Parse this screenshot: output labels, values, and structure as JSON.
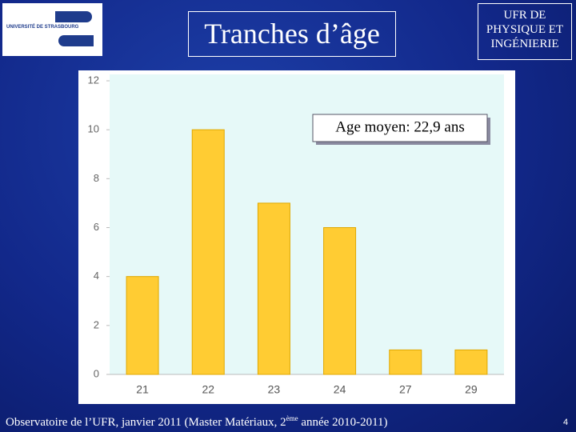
{
  "logo": "UNIVERSITÉ DE STRASBOURG",
  "institution": [
    "UFR DE",
    "PHYSIQUE ET",
    "INGÉNIERIE"
  ],
  "chart_data": {
    "type": "bar",
    "title": "Tranches d’âge",
    "categories": [
      "21",
      "22",
      "23",
      "24",
      "27",
      "29"
    ],
    "values": [
      4,
      10,
      7,
      6,
      1,
      1
    ],
    "color": "#ffcc33",
    "ylim": [
      0,
      12
    ],
    "yticks": [
      0,
      2,
      4,
      6,
      8,
      10,
      12
    ],
    "annotation": "Age moyen: 22,9 ans"
  },
  "footer": {
    "text": "Observatoire de l’UFR, janvier 2011 (Master Matériaux, 2",
    "superscript": "ème",
    "text_end": " année 2010-2011)"
  },
  "page_number": "4"
}
